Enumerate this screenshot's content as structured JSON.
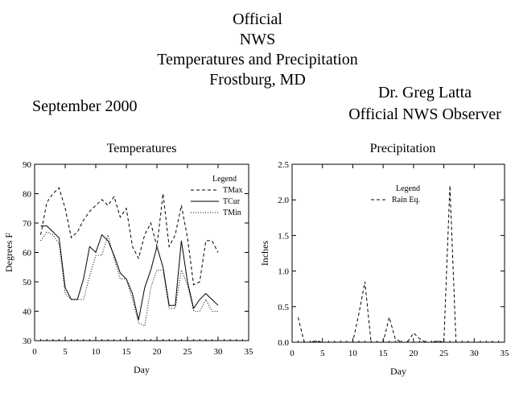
{
  "header": {
    "line1": "Official",
    "line2": "NWS",
    "line3": "Temperatures and Precipitation",
    "line4": "Frostburg, MD",
    "month": "September 2000",
    "observer_name": "Dr. Greg Latta",
    "observer_role": "Official NWS Observer"
  },
  "chart_data": [
    {
      "type": "line",
      "title": "Temperatures",
      "xlabel": "Day",
      "ylabel": "Degrees F",
      "xlim": [
        0,
        35
      ],
      "ylim": [
        30,
        90
      ],
      "xticks": [
        0,
        5,
        10,
        15,
        20,
        25,
        30,
        35
      ],
      "yticks": [
        30,
        40,
        50,
        60,
        70,
        80,
        90
      ],
      "legend_title": "Legend",
      "legend_position": "top-right",
      "x": [
        1,
        2,
        3,
        4,
        5,
        6,
        7,
        8,
        9,
        10,
        11,
        12,
        13,
        14,
        15,
        16,
        17,
        18,
        19,
        20,
        21,
        22,
        23,
        24,
        25,
        26,
        27,
        28,
        29,
        30
      ],
      "series": [
        {
          "name": "TMax",
          "style": "dashed",
          "values": [
            66,
            77,
            80,
            82,
            75,
            65,
            67,
            71,
            74,
            76,
            78,
            76,
            79,
            72,
            75,
            62,
            58,
            66,
            70,
            62,
            80,
            62,
            66,
            76,
            65,
            49,
            50,
            64,
            64,
            60
          ]
        },
        {
          "name": "TCur",
          "style": "solid",
          "values": [
            69,
            69,
            67,
            65,
            48,
            44,
            44,
            51,
            62,
            60,
            66,
            64,
            59,
            53,
            51,
            46,
            37,
            48,
            54,
            62,
            55,
            42,
            42,
            64,
            50,
            41,
            44,
            46,
            44,
            42
          ]
        },
        {
          "name": "TMin",
          "style": "dotted",
          "values": [
            64,
            67,
            66,
            63,
            46,
            44,
            44,
            44,
            52,
            59,
            59,
            66,
            58,
            51,
            51,
            44,
            36,
            35,
            48,
            54,
            54,
            41,
            41,
            54,
            49,
            40,
            40,
            44,
            40,
            40
          ]
        }
      ]
    },
    {
      "type": "line",
      "title": "Precipitation",
      "xlabel": "Day",
      "ylabel": "Inches",
      "xlim": [
        0,
        35
      ],
      "ylim": [
        0,
        2.5
      ],
      "xticks": [
        0,
        5,
        10,
        15,
        20,
        25,
        30,
        35
      ],
      "yticks": [
        0.0,
        0.5,
        1.0,
        1.5,
        2.0,
        2.5
      ],
      "yticklabels": [
        "0.0",
        "0.5",
        "1.0",
        "1.5",
        "2.0",
        "2.5"
      ],
      "legend_title": "Legend",
      "legend_position": "top-center",
      "x": [
        1,
        2,
        3,
        4,
        5,
        6,
        7,
        8,
        9,
        10,
        11,
        12,
        13,
        14,
        15,
        16,
        17,
        18,
        19,
        20,
        21,
        22,
        23,
        24,
        25,
        26,
        27,
        28,
        29,
        30
      ],
      "series": [
        {
          "name": "Rain Eq.",
          "style": "dashed",
          "values": [
            0.35,
            0.0,
            0.0,
            0.02,
            0.0,
            0.0,
            0.0,
            0.0,
            0.0,
            0.0,
            0.4,
            0.85,
            0.0,
            0.0,
            0.0,
            0.35,
            0.05,
            0.0,
            0.0,
            0.13,
            0.05,
            0.0,
            0.0,
            0.02,
            0.0,
            2.2,
            0.0,
            0.0,
            0.0,
            0.0
          ]
        }
      ]
    }
  ]
}
